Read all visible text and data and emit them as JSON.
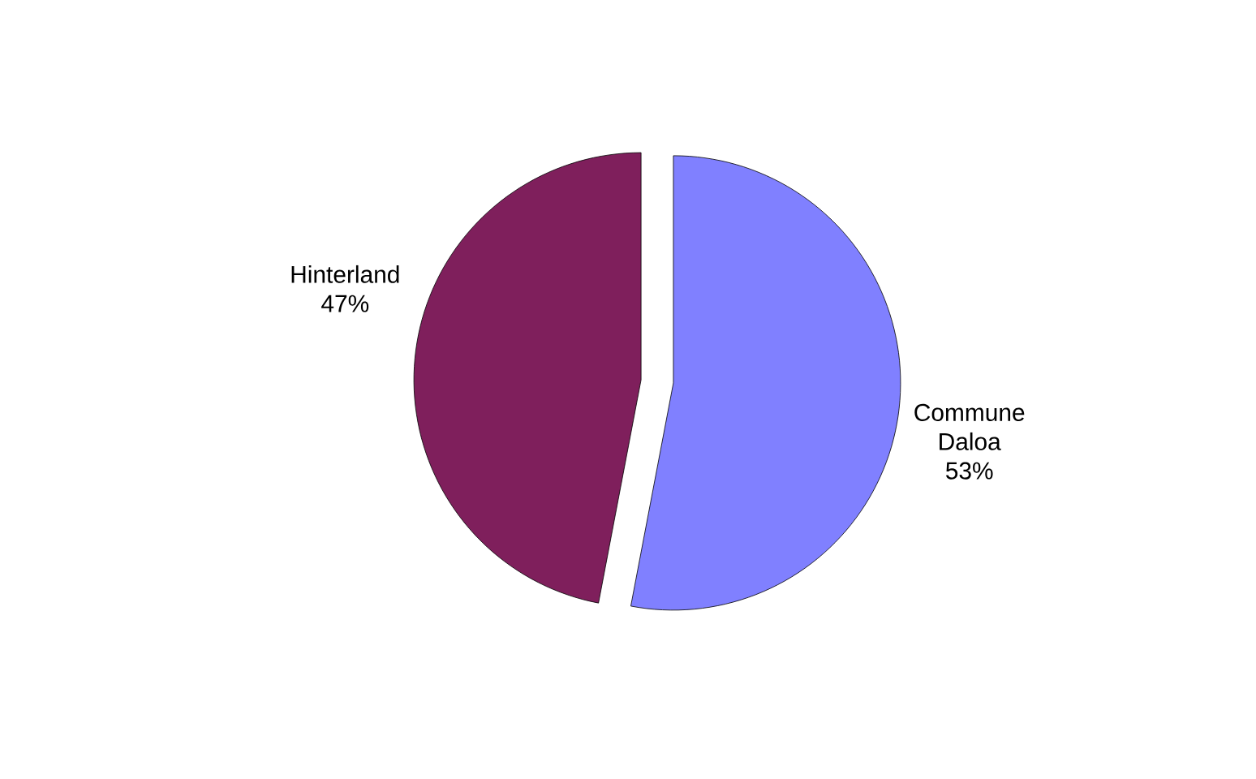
{
  "chart_data": {
    "type": "pie",
    "categories": [
      "Commune Daloa",
      "Hinterland"
    ],
    "values": [
      53,
      47
    ],
    "colors": [
      "#8080ff",
      "#7f1f5c"
    ],
    "value_labels": [
      "53%",
      "47%"
    ]
  }
}
